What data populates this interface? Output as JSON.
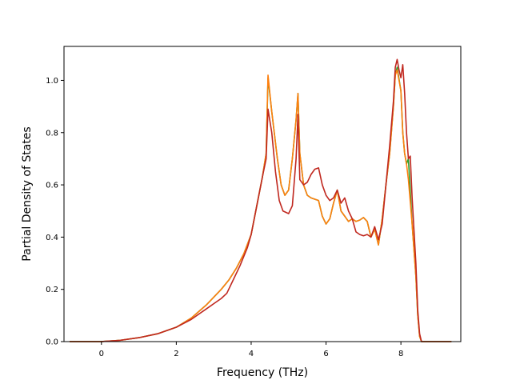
{
  "chart_data": {
    "type": "line",
    "title": "",
    "xlabel": "Frequency (THz)",
    "ylabel": "Partial Density of States",
    "xlim": [
      -1.0,
      9.6
    ],
    "ylim": [
      0.0,
      1.13
    ],
    "xticks": [
      0,
      2,
      4,
      6,
      8
    ],
    "xtick_labels": [
      "0",
      "2",
      "4",
      "6",
      "8"
    ],
    "yticks": [
      0.0,
      0.2,
      0.4,
      0.6,
      0.8,
      1.0
    ],
    "ytick_labels": [
      "0.0",
      "0.2",
      "0.4",
      "0.6",
      "0.8",
      "1.0"
    ],
    "grid": false,
    "legend": "none",
    "series": [
      {
        "color": "#2ca02c",
        "x": [
          -0.85,
          0,
          0.5,
          1.0,
          1.5,
          2.0,
          2.4,
          2.8,
          3.2,
          3.4,
          3.6,
          3.8,
          4.0,
          4.15,
          4.3,
          4.4,
          4.45,
          4.55,
          4.7,
          4.8,
          4.9,
          5.0,
          5.1,
          5.2,
          5.25,
          5.3,
          5.4,
          5.5,
          5.6,
          5.7,
          5.8,
          5.9,
          6.0,
          6.1,
          6.2,
          6.3,
          6.4,
          6.5,
          6.6,
          6.7,
          6.8,
          6.9,
          7.0,
          7.1,
          7.2,
          7.3,
          7.4,
          7.45,
          7.5,
          7.6,
          7.7,
          7.8,
          7.85,
          7.9,
          8.0,
          8.05,
          8.1,
          8.15,
          8.2,
          8.3,
          8.4,
          8.45,
          8.5,
          8.55,
          9.35
        ],
        "y": [
          0.0,
          0.0,
          0.005,
          0.015,
          0.03,
          0.055,
          0.09,
          0.14,
          0.2,
          0.235,
          0.28,
          0.335,
          0.41,
          0.52,
          0.63,
          0.72,
          1.01,
          0.88,
          0.7,
          0.6,
          0.56,
          0.58,
          0.7,
          0.85,
          0.95,
          0.72,
          0.6,
          0.56,
          0.55,
          0.545,
          0.54,
          0.48,
          0.45,
          0.47,
          0.53,
          0.58,
          0.5,
          0.48,
          0.46,
          0.47,
          0.46,
          0.465,
          0.475,
          0.46,
          0.4,
          0.43,
          0.37,
          0.42,
          0.47,
          0.6,
          0.72,
          0.9,
          1.02,
          1.05,
          0.96,
          0.8,
          0.72,
          0.68,
          0.7,
          0.45,
          0.25,
          0.1,
          0.02,
          0.0,
          0.0
        ]
      },
      {
        "color": "#ff7f0e",
        "x": [
          -0.85,
          0,
          0.5,
          1.0,
          1.5,
          2.0,
          2.4,
          2.8,
          3.2,
          3.4,
          3.6,
          3.8,
          4.0,
          4.15,
          4.3,
          4.4,
          4.45,
          4.55,
          4.7,
          4.8,
          4.9,
          5.0,
          5.1,
          5.2,
          5.25,
          5.3,
          5.4,
          5.5,
          5.6,
          5.7,
          5.8,
          5.9,
          6.0,
          6.1,
          6.2,
          6.3,
          6.4,
          6.5,
          6.6,
          6.7,
          6.8,
          6.9,
          7.0,
          7.1,
          7.2,
          7.3,
          7.4,
          7.45,
          7.5,
          7.6,
          7.7,
          7.8,
          7.85,
          7.9,
          8.0,
          8.05,
          8.1,
          8.15,
          8.2,
          8.3,
          8.4,
          8.45,
          8.5,
          8.55,
          9.35
        ],
        "y": [
          0.0,
          0.0,
          0.005,
          0.015,
          0.03,
          0.055,
          0.09,
          0.14,
          0.2,
          0.235,
          0.28,
          0.335,
          0.41,
          0.52,
          0.63,
          0.72,
          1.02,
          0.88,
          0.7,
          0.6,
          0.56,
          0.58,
          0.7,
          0.85,
          0.95,
          0.72,
          0.6,
          0.56,
          0.55,
          0.545,
          0.54,
          0.48,
          0.45,
          0.47,
          0.53,
          0.58,
          0.5,
          0.48,
          0.46,
          0.47,
          0.46,
          0.465,
          0.475,
          0.46,
          0.4,
          0.43,
          0.37,
          0.42,
          0.47,
          0.6,
          0.72,
          0.9,
          1.02,
          1.04,
          0.96,
          0.8,
          0.72,
          0.68,
          0.62,
          0.45,
          0.25,
          0.1,
          0.02,
          0.0,
          0.0
        ]
      },
      {
        "color": "#c0281f",
        "x": [
          -0.85,
          0,
          0.5,
          1.0,
          1.5,
          2.0,
          2.4,
          2.8,
          3.0,
          3.2,
          3.35,
          3.5,
          3.7,
          3.9,
          4.0,
          4.15,
          4.3,
          4.4,
          4.45,
          4.55,
          4.65,
          4.75,
          4.85,
          5.0,
          5.1,
          5.2,
          5.25,
          5.3,
          5.4,
          5.5,
          5.6,
          5.7,
          5.8,
          5.9,
          6.0,
          6.1,
          6.2,
          6.3,
          6.4,
          6.5,
          6.6,
          6.7,
          6.8,
          6.9,
          7.0,
          7.1,
          7.2,
          7.3,
          7.4,
          7.5,
          7.6,
          7.7,
          7.8,
          7.85,
          7.9,
          7.95,
          8.0,
          8.05,
          8.1,
          8.15,
          8.2,
          8.25,
          8.3,
          8.4,
          8.45,
          8.5,
          8.55,
          9.35
        ],
        "y": [
          0.0,
          0.0,
          0.005,
          0.015,
          0.03,
          0.055,
          0.085,
          0.125,
          0.145,
          0.165,
          0.185,
          0.23,
          0.29,
          0.36,
          0.41,
          0.52,
          0.63,
          0.7,
          0.89,
          0.8,
          0.65,
          0.54,
          0.5,
          0.49,
          0.52,
          0.7,
          0.87,
          0.62,
          0.6,
          0.61,
          0.64,
          0.66,
          0.665,
          0.6,
          0.56,
          0.54,
          0.55,
          0.58,
          0.53,
          0.55,
          0.5,
          0.47,
          0.42,
          0.41,
          0.405,
          0.41,
          0.4,
          0.44,
          0.39,
          0.45,
          0.6,
          0.75,
          0.92,
          1.05,
          1.08,
          1.04,
          1.01,
          1.06,
          0.95,
          0.8,
          0.7,
          0.71,
          0.55,
          0.3,
          0.12,
          0.03,
          0.0,
          0.0
        ]
      }
    ]
  }
}
